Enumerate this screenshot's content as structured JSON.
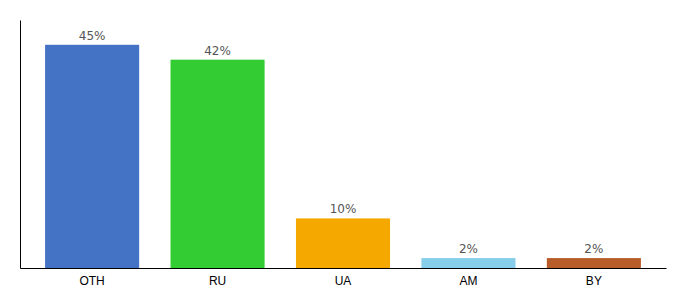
{
  "chart_data": {
    "type": "bar",
    "categories": [
      "OTH",
      "RU",
      "UA",
      "AM",
      "BY"
    ],
    "values": [
      45,
      42,
      10,
      2,
      2
    ],
    "value_labels": [
      "45%",
      "42%",
      "10%",
      "2%",
      "2%"
    ],
    "data_labels": true,
    "colors": [
      "#4472c4",
      "#33cc33",
      "#f5a800",
      "#87ceeb",
      "#b85c2a"
    ],
    "ylim": [
      0,
      50
    ],
    "tick_labels": "x",
    "grid": false
  }
}
